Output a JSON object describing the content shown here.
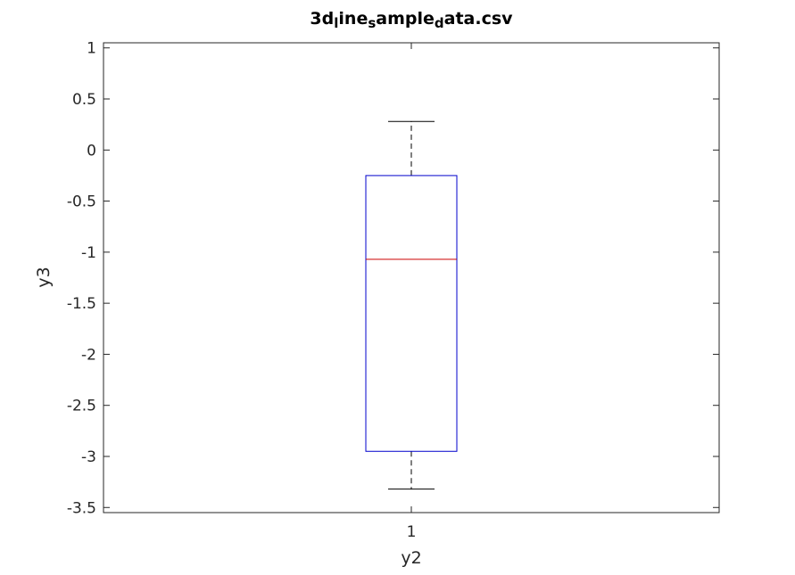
{
  "chart_data": {
    "type": "box",
    "title": "3d_line_sample_data.csv",
    "title_rendered": {
      "parts": [
        {
          "text": "3d",
          "sub": false
        },
        {
          "text": "l",
          "sub": true
        },
        {
          "text": "ine",
          "sub": false
        },
        {
          "text": "s",
          "sub": true
        },
        {
          "text": "ample",
          "sub": false
        },
        {
          "text": "d",
          "sub": true
        },
        {
          "text": "ata.csv",
          "sub": false
        }
      ]
    },
    "xlabel": "y2",
    "ylabel": "y3",
    "categories": [
      "1"
    ],
    "ylim": [
      -3.55,
      1.05
    ],
    "yticks": [
      1,
      0.5,
      0,
      -0.5,
      -1,
      -1.5,
      -2,
      -2.5,
      -3,
      -3.5
    ],
    "ytick_labels": [
      "1",
      "0.5",
      "0",
      "-0.5",
      "-1",
      "-1.5",
      "-2",
      "-2.5",
      "-3",
      "-3.5"
    ],
    "boxes": [
      {
        "category": "1",
        "whisker_low": -3.32,
        "q1": -2.95,
        "median": -1.07,
        "q3": -0.25,
        "whisker_high": 0.28
      }
    ],
    "grid": false,
    "colors": {
      "box": "#0000cc",
      "median": "#cc0000",
      "whisker": "#000000",
      "axes": "#262626"
    }
  }
}
